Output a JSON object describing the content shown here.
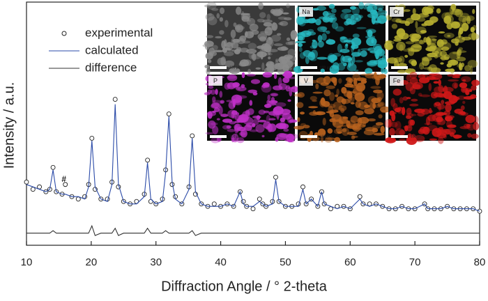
{
  "chart_data": {
    "type": "line",
    "x_label": "Diffraction Angle / ° 2-theta",
    "y_label": "Intensity / a.u.",
    "annotation": "#",
    "legend": "upper left",
    "xlim": [
      10,
      80
    ],
    "xticks": [
      10,
      20,
      30,
      40,
      50,
      60,
      70,
      80
    ],
    "ylim": [
      0,
      100
    ],
    "x": [
      10,
      11,
      12,
      13,
      13.6,
      14.1,
      14.6,
      15.5,
      16,
      17,
      18,
      19,
      19.6,
      20.1,
      20.6,
      21.5,
      22.5,
      23.2,
      23.7,
      24.2,
      25,
      26,
      27,
      28.2,
      28.7,
      29.2,
      30,
      31,
      31.5,
      32,
      32.5,
      33,
      34,
      35.1,
      35.6,
      36.1,
      37,
      38,
      39,
      40,
      41,
      42,
      43,
      43.5,
      44,
      45,
      46,
      46.5,
      47,
      48,
      48.5,
      49,
      50,
      51,
      52,
      52.7,
      53.2,
      54,
      55,
      55.6,
      56,
      57,
      58,
      59,
      60,
      61.5,
      62,
      63,
      64,
      65,
      66,
      67,
      68,
      69,
      70,
      71.5,
      72,
      73,
      74,
      75,
      76,
      77,
      78,
      79,
      80
    ],
    "series": [
      {
        "name": "experimental",
        "color": "#222222",
        "marker": "circle",
        "values": [
          26,
          23,
          24,
          22,
          23,
          32,
          22,
          21,
          25,
          20,
          19,
          20,
          25,
          44,
          23,
          19,
          19,
          26,
          60,
          24,
          18,
          17,
          18,
          21,
          35,
          18,
          17,
          19,
          31,
          54,
          25,
          20,
          17,
          24,
          45,
          21,
          17,
          16,
          17,
          16,
          17,
          16,
          22,
          18,
          16,
          15,
          19,
          17,
          16,
          18,
          28,
          18,
          16,
          16,
          17,
          24,
          17,
          19,
          16,
          22,
          17,
          15,
          16,
          16,
          15,
          20,
          17,
          17,
          17,
          16,
          15,
          15,
          16,
          15,
          15,
          17,
          15,
          15,
          15,
          16,
          15,
          15,
          15,
          15,
          14
        ]
      },
      {
        "name": "calculated",
        "color": "#2a4aa8",
        "marker": "line",
        "values": [
          25,
          24,
          23,
          22,
          23,
          31,
          22,
          21,
          21,
          20,
          20,
          19,
          24,
          43,
          24,
          19,
          18,
          25,
          58,
          25,
          18,
          17,
          17,
          20,
          34,
          19,
          17,
          18,
          30,
          53,
          26,
          19,
          17,
          23,
          44,
          22,
          17,
          16,
          16,
          16,
          17,
          16,
          22,
          17,
          16,
          16,
          18,
          17,
          16,
          17,
          27,
          18,
          16,
          16,
          16,
          23,
          17,
          19,
          16,
          22,
          17,
          16,
          15,
          16,
          15,
          19,
          17,
          16,
          17,
          16,
          15,
          15,
          16,
          15,
          15,
          17,
          15,
          15,
          15,
          16,
          15,
          15,
          15,
          15,
          14
        ]
      },
      {
        "name": "difference",
        "color": "#333333",
        "marker": "line",
        "values": [
          5,
          5,
          5,
          5,
          5,
          6,
          5,
          5,
          5,
          5,
          5,
          5,
          5,
          8,
          4,
          5,
          5,
          5,
          7,
          4,
          5,
          5,
          5,
          5,
          7,
          5,
          5,
          5,
          6,
          5,
          5,
          5,
          5,
          5,
          6,
          4,
          5,
          5,
          5,
          5,
          5,
          5,
          5,
          5,
          5,
          5,
          5,
          5,
          5,
          5,
          5,
          5,
          5,
          5,
          5,
          5,
          5,
          5,
          5,
          5,
          5,
          5,
          5,
          5,
          5,
          5,
          5,
          5,
          5,
          5,
          5,
          5,
          5,
          5,
          5,
          5,
          5,
          5,
          5,
          5,
          5,
          5,
          5,
          5,
          5
        ]
      }
    ],
    "insets": {
      "scale_bar": "100 μm",
      "sem_color": "#8a8a8a",
      "maps": [
        {
          "label": "Na",
          "color": "#27b8c0"
        },
        {
          "label": "Cr",
          "color": "#b8b030"
        },
        {
          "label": "P",
          "color": "#c030c8"
        },
        {
          "label": "V",
          "color": "#b8621e"
        },
        {
          "label": "Fe",
          "color": "#d01818"
        }
      ]
    }
  }
}
